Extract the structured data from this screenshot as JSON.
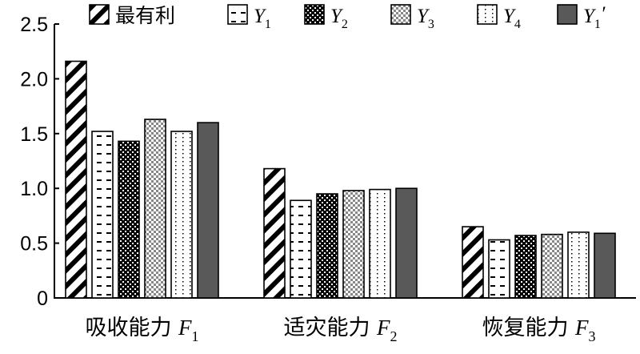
{
  "chart_data": {
    "type": "bar",
    "title": "",
    "xlabel": "",
    "ylabel": "",
    "ylim": [
      0,
      2.5
    ],
    "yticks": [
      "0",
      "0.5",
      "1.0",
      "1.5",
      "2.0",
      "2.5"
    ],
    "grid": false,
    "legend_position": "top",
    "categories": [
      {
        "text": "吸收能力 ",
        "symbol": "F",
        "sub": "1"
      },
      {
        "text": "适灾能力 ",
        "symbol": "F",
        "sub": "2"
      },
      {
        "text": "恢复能力 ",
        "symbol": "F",
        "sub": "3"
      }
    ],
    "series": [
      {
        "name": "最有利",
        "symbol": "",
        "sub": "",
        "prime": "",
        "pattern": "diagonal",
        "values": [
          2.16,
          1.18,
          0.65
        ]
      },
      {
        "name": "",
        "symbol": "Y",
        "sub": "1",
        "prime": "",
        "pattern": "dashes",
        "values": [
          1.52,
          0.89,
          0.53
        ]
      },
      {
        "name": "",
        "symbol": "Y",
        "sub": "2",
        "prime": "",
        "pattern": "checker",
        "values": [
          1.43,
          0.95,
          0.57
        ]
      },
      {
        "name": "",
        "symbol": "Y",
        "sub": "3",
        "prime": "",
        "pattern": "grey-dots",
        "values": [
          1.63,
          0.98,
          0.58
        ]
      },
      {
        "name": "",
        "symbol": "Y",
        "sub": "4",
        "prime": "",
        "pattern": "dotted-lines",
        "values": [
          1.52,
          0.99,
          0.6
        ]
      },
      {
        "name": "",
        "symbol": "Y",
        "sub": "1",
        "prime": "′",
        "pattern": "solid-grey",
        "values": [
          1.6,
          1.0,
          0.59
        ]
      }
    ],
    "colors": {
      "solid_grey": "#595959",
      "grey_dots": "#888888",
      "ink": "#000000"
    }
  }
}
